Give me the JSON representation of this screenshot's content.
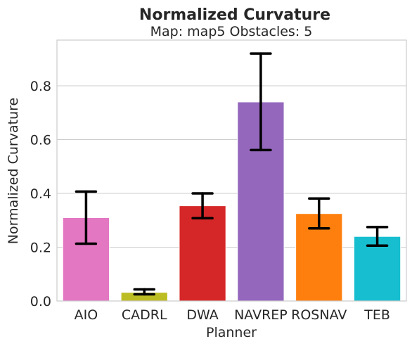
{
  "chart_data": {
    "type": "bar",
    "title": "Normalized Curvature",
    "subtitle": "Map: map5 Obstacles: 5",
    "xlabel": "Planner",
    "ylabel": "Normalized Curvature",
    "ylim": [
      0,
      0.97
    ],
    "yticks": [
      0.0,
      0.2,
      0.4,
      0.6,
      0.8
    ],
    "ytick_labels": [
      "0.0",
      "0.2",
      "0.4",
      "0.6",
      "0.8"
    ],
    "grid": true,
    "categories": [
      "AIO",
      "CADRL",
      "DWA",
      "NAVREP",
      "ROSNAV",
      "TEB"
    ],
    "values": [
      0.31,
      0.032,
      0.354,
      0.74,
      0.325,
      0.24
    ],
    "error_low": [
      0.213,
      0.025,
      0.308,
      0.561,
      0.27,
      0.206
    ],
    "error_high": [
      0.407,
      0.043,
      0.4,
      0.92,
      0.381,
      0.275
    ],
    "colors": [
      "#e377c2",
      "#bcbd22",
      "#d62728",
      "#9467bd",
      "#ff7f0e",
      "#17becf"
    ]
  }
}
